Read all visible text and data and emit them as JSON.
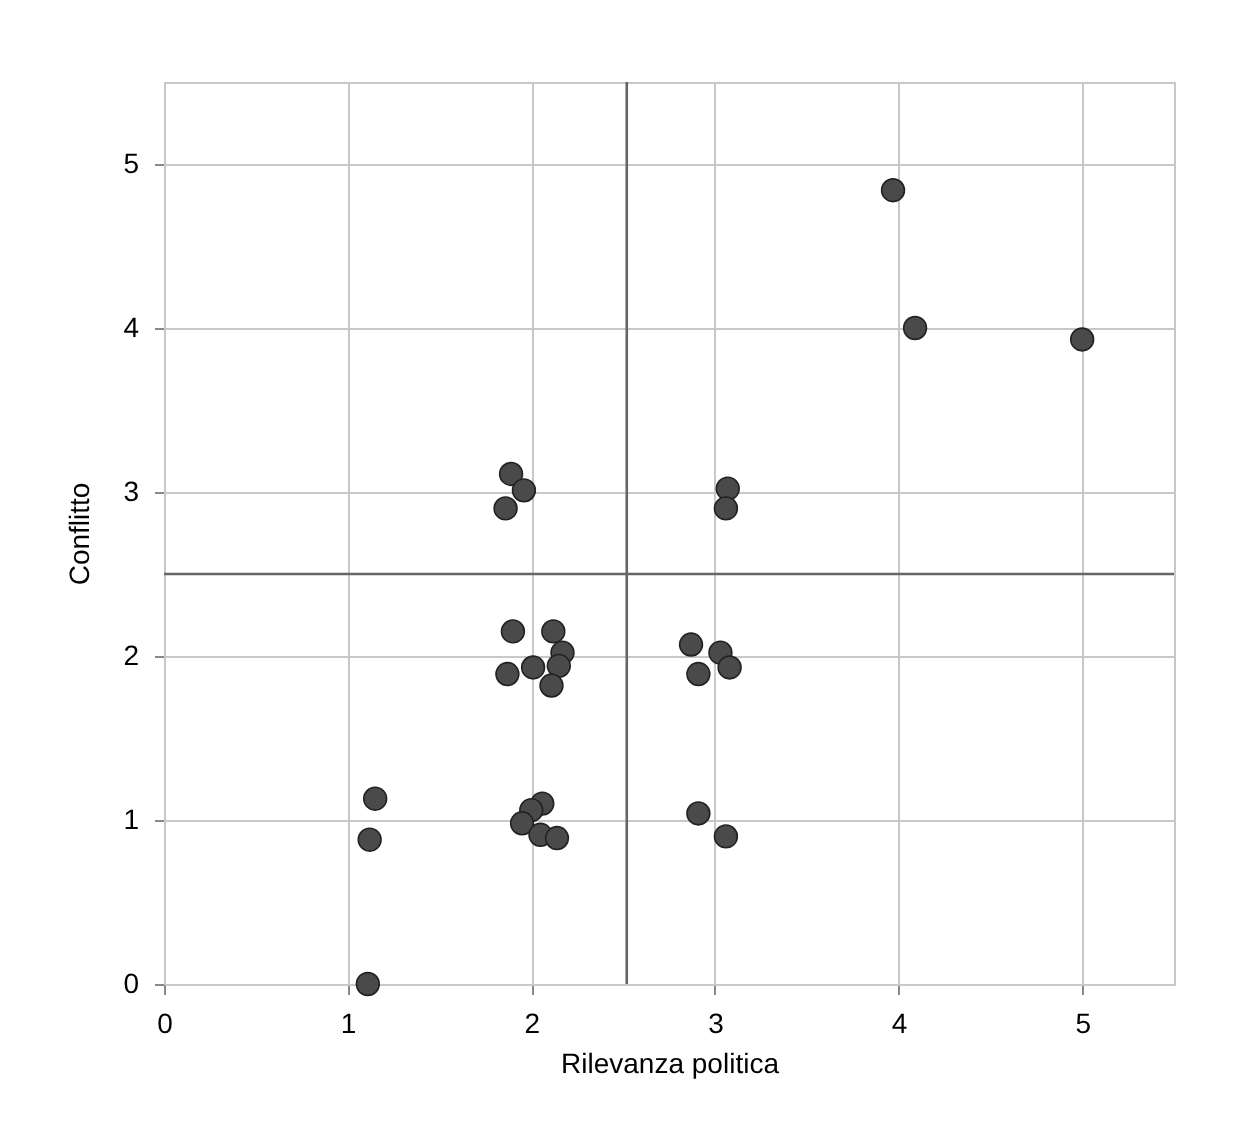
{
  "chart_data": {
    "type": "scatter",
    "xlabel": "Rilevanza politica",
    "ylabel": "Conflitto",
    "x": [
      3.97,
      4.09,
      5.0,
      1.89,
      1.96,
      1.86,
      3.07,
      3.06,
      1.9,
      2.12,
      2.17,
      2.01,
      2.15,
      2.11,
      1.87,
      2.87,
      3.03,
      2.91,
      3.08,
      1.15,
      1.12,
      1.11,
      2.06,
      2.0,
      1.95,
      2.05,
      2.14,
      2.91,
      3.06
    ],
    "values": [
      4.84,
      4.0,
      3.93,
      3.11,
      3.01,
      2.9,
      3.02,
      2.9,
      2.15,
      2.15,
      2.02,
      1.93,
      1.94,
      1.82,
      1.89,
      2.07,
      2.02,
      1.89,
      1.93,
      1.13,
      0.88,
      0.0,
      1.1,
      1.06,
      0.98,
      0.91,
      0.89,
      1.04,
      0.9
    ],
    "color": "#4a4a4a",
    "marker": "circle",
    "xlim": [
      0,
      5.5
    ],
    "xticks": [
      0,
      1,
      2,
      3,
      4,
      5
    ],
    "ylim": [
      0,
      5.5
    ],
    "yticks": [
      0,
      1,
      2,
      3,
      4,
      5
    ],
    "grid": true,
    "ref_lines": [
      {
        "axis": "x",
        "value": 2.52,
        "color": "#666666"
      },
      {
        "axis": "y",
        "value": 2.5,
        "color": "#666666"
      }
    ]
  }
}
